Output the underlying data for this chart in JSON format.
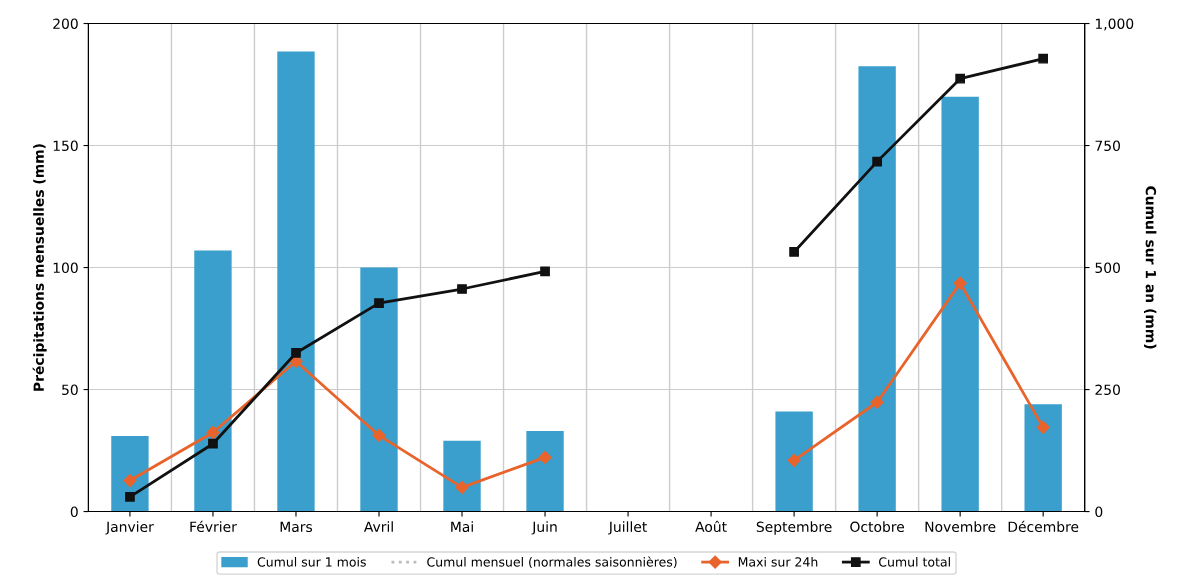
{
  "chart_data": {
    "type": "bar",
    "categories": [
      "Janvier",
      "Février",
      "Mars",
      "Avril",
      "Mai",
      "Juin",
      "Juillet",
      "Août",
      "Septembre",
      "Octobre",
      "Novembre",
      "Décembre"
    ],
    "series": [
      {
        "name": "Cumul sur 1 mois",
        "color": "#3a9fcc",
        "values": [
          31,
          107,
          188.5,
          100,
          29,
          33,
          null,
          null,
          41,
          182.5,
          170,
          44
        ]
      },
      {
        "name": "Cumul mensuel (normales saisonnières)",
        "type": "line",
        "color": "#bbbbbb",
        "line_style": "dotted",
        "marker": "none",
        "values": [
          null,
          null,
          null,
          null,
          null,
          null,
          null,
          null,
          null,
          null,
          null,
          null
        ]
      },
      {
        "name": "Maxi sur 24h",
        "type": "line",
        "color": "#e8642c",
        "marker": "diamond",
        "values": [
          12.7,
          32.4,
          61.6,
          31.2,
          9.9,
          22.2,
          null,
          null,
          21,
          44.8,
          93.6,
          34.5
        ]
      },
      {
        "name": "Cumul total",
        "type": "line",
        "axis": "y2",
        "color": "#111111",
        "marker": "square",
        "values": [
          30,
          139,
          325,
          427,
          456,
          492,
          null,
          null,
          532,
          717,
          887,
          928
        ]
      }
    ],
    "ylabel": "Précipitations mensuelles (mm)",
    "y2label": "Cumul sur 1 an (mm)",
    "ylim": [
      0,
      200
    ],
    "yticks": [
      0,
      50,
      100,
      150,
      200
    ],
    "y2lim": [
      0,
      1000
    ],
    "y2ticks": [
      0,
      250,
      500,
      750,
      {
        "value": 1000,
        "label": "1,000"
      }
    ],
    "grid": true,
    "legend": "bottom"
  }
}
